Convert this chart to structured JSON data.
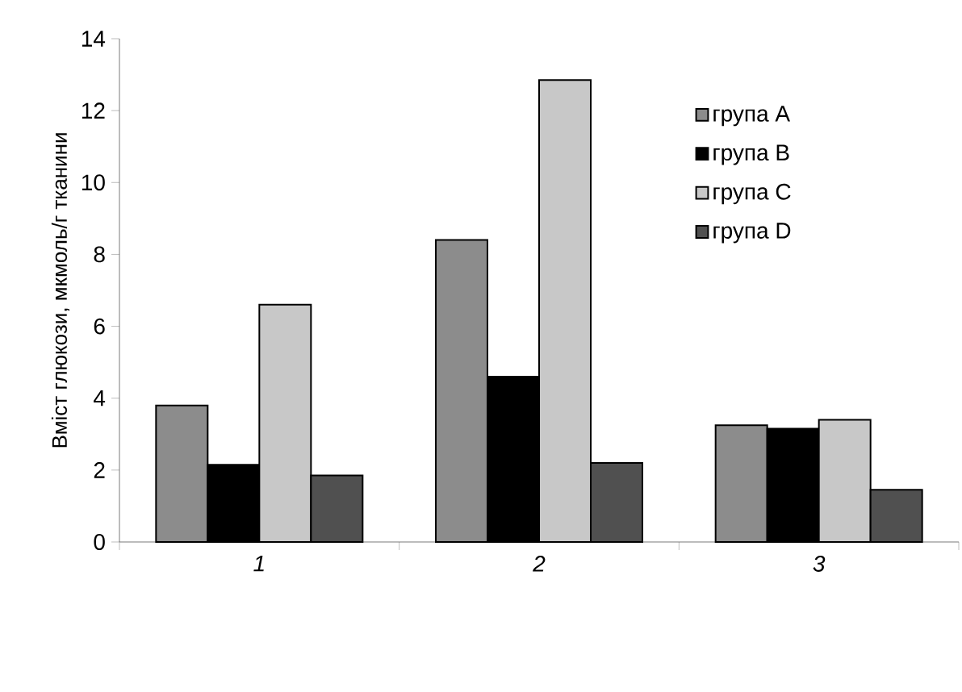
{
  "chart_data": {
    "type": "bar",
    "ylabel": "Вміст глюкози, мкмоль/г тканини",
    "categories": [
      "1",
      "2",
      "3"
    ],
    "series": [
      {
        "name": "група A",
        "color": "#8c8c8c",
        "values": [
          3.8,
          8.4,
          3.25
        ]
      },
      {
        "name": "група B",
        "color": "#000000",
        "values": [
          2.15,
          4.6,
          3.15
        ]
      },
      {
        "name": "група C",
        "color": "#c8c8c8",
        "values": [
          6.6,
          12.85,
          3.4
        ]
      },
      {
        "name": "група D",
        "color": "#505050",
        "values": [
          1.85,
          2.2,
          1.45
        ]
      }
    ],
    "ylim": [
      0,
      14
    ],
    "yticks": [
      0,
      2,
      4,
      6,
      8,
      10,
      12,
      14
    ],
    "legend": "top right",
    "grid": false
  }
}
